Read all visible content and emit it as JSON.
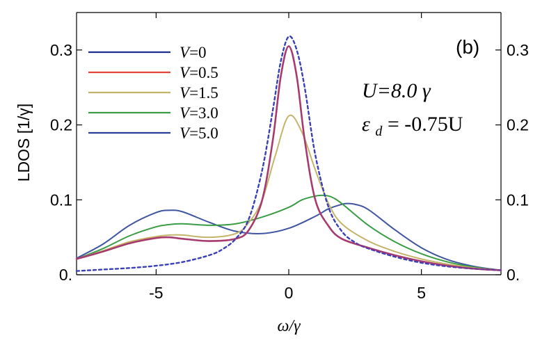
{
  "chart_data": {
    "type": "line",
    "panel_label": "(b)",
    "xlabel": "ω/γ",
    "ylabel": "LDOS [1/γ]",
    "xlim": [
      -8,
      8
    ],
    "ylim": [
      0,
      0.35
    ],
    "xticks": [
      {
        "value": -5,
        "label": "-5"
      },
      {
        "value": 0,
        "label": "0"
      },
      {
        "value": 5,
        "label": "5"
      }
    ],
    "yticks": [
      {
        "value": 0,
        "label": "0."
      },
      {
        "value": 0.1,
        "label": "0.1"
      },
      {
        "value": 0.2,
        "label": "0.2"
      },
      {
        "value": 0.3,
        "label": "0.3"
      }
    ],
    "annotations": {
      "U": "U=8.0 γ",
      "eps": "ε",
      "eps_sub": "d",
      "eps_rest": " = -0.75U"
    },
    "legend": [
      {
        "var": "V",
        "rest": "=0",
        "color": "#1f2f8f"
      },
      {
        "var": "V",
        "rest": "=0.5",
        "color": "#e0453a"
      },
      {
        "var": "V",
        "rest": "=1.5",
        "color": "#c4b46a"
      },
      {
        "var": "V",
        "rest": "=3.0",
        "color": "#3a9c45"
      },
      {
        "var": "V",
        "rest": "=5.0",
        "color": "#2a3f9a"
      }
    ],
    "series": [
      {
        "name": "V=0 (dashed)",
        "color": "#3a3fb8",
        "dash": true,
        "x": [
          -8,
          -7,
          -6,
          -5,
          -4,
          -3,
          -2.5,
          -2,
          -1.5,
          -1,
          -0.6,
          -0.3,
          0,
          0.3,
          0.6,
          1,
          1.5,
          2,
          2.5,
          3,
          4,
          5,
          6,
          7,
          8
        ],
        "y": [
          0.005,
          0.007,
          0.009,
          0.012,
          0.017,
          0.026,
          0.034,
          0.048,
          0.075,
          0.14,
          0.22,
          0.285,
          0.318,
          0.3,
          0.25,
          0.16,
          0.09,
          0.058,
          0.043,
          0.035,
          0.024,
          0.016,
          0.011,
          0.008,
          0.006
        ]
      },
      {
        "name": "V=0.5",
        "color": "#e0453a",
        "dash": false,
        "x": [
          -8,
          -7,
          -6,
          -5,
          -4.5,
          -4,
          -3,
          -2,
          -1.5,
          -1,
          -0.6,
          -0.3,
          0,
          0.3,
          0.6,
          1,
          1.5,
          2,
          3,
          4,
          5,
          6,
          7,
          8
        ],
        "y": [
          0.021,
          0.031,
          0.042,
          0.049,
          0.05,
          0.048,
          0.045,
          0.048,
          0.06,
          0.1,
          0.18,
          0.265,
          0.305,
          0.265,
          0.18,
          0.1,
          0.065,
          0.048,
          0.036,
          0.026,
          0.018,
          0.012,
          0.008,
          0.006
        ]
      },
      {
        "name": "V=1.5",
        "color": "#c4b46a",
        "dash": false,
        "x": [
          -8,
          -7,
          -6,
          -5,
          -4.5,
          -4,
          -3,
          -2,
          -1.5,
          -1,
          -0.5,
          0,
          0.5,
          1,
          1.5,
          2,
          3,
          4,
          5,
          6,
          7,
          8
        ],
        "y": [
          0.021,
          0.032,
          0.044,
          0.051,
          0.053,
          0.053,
          0.05,
          0.055,
          0.07,
          0.1,
          0.16,
          0.212,
          0.19,
          0.14,
          0.095,
          0.068,
          0.045,
          0.031,
          0.021,
          0.014,
          0.009,
          0.006
        ]
      },
      {
        "name": "V=3.0",
        "color": "#3a9c45",
        "dash": false,
        "x": [
          -8,
          -7,
          -6,
          -5,
          -4.5,
          -4,
          -3,
          -2,
          -1,
          0,
          0.5,
          1,
          1.3,
          1.6,
          2,
          3,
          4,
          5,
          6,
          7,
          8
        ],
        "y": [
          0.021,
          0.035,
          0.052,
          0.064,
          0.067,
          0.068,
          0.066,
          0.068,
          0.077,
          0.09,
          0.1,
          0.105,
          0.106,
          0.104,
          0.095,
          0.066,
          0.044,
          0.028,
          0.017,
          0.01,
          0.006
        ]
      },
      {
        "name": "V=5.0",
        "color": "#3f55a0",
        "dash": false,
        "x": [
          -8,
          -7,
          -6,
          -5,
          -4.5,
          -4,
          -3,
          -2,
          -1,
          0,
          1,
          1.5,
          2,
          2.2,
          2.5,
          3,
          4,
          5,
          6,
          7,
          8
        ],
        "y": [
          0.022,
          0.041,
          0.066,
          0.083,
          0.086,
          0.084,
          0.07,
          0.058,
          0.055,
          0.062,
          0.078,
          0.088,
          0.094,
          0.095,
          0.094,
          0.087,
          0.06,
          0.036,
          0.02,
          0.011,
          0.006
        ]
      }
    ]
  }
}
